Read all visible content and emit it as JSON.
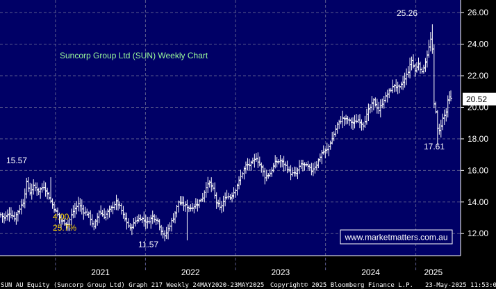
{
  "chart_data": {
    "type": "ohlc",
    "title": "Suncorp Group Ltd (SUN) Weekly Chart",
    "ylim": [
      10.6,
      26.8
    ],
    "y_ticks": [
      12,
      14,
      16,
      18,
      20,
      22,
      24,
      26
    ],
    "y_tick_labels": [
      "12.00",
      "14.00",
      "16.00",
      "18.00",
      "20.00",
      "22.00",
      "24.00",
      "26.00"
    ],
    "x_labels": [
      "2021",
      "2022",
      "2023",
      "2024",
      "2025"
    ],
    "grid": true,
    "last_price": "20.52",
    "watermark": "www.marketmatters.com.au",
    "annotations": [
      {
        "text": "25.26",
        "color": "#ffffff"
      },
      {
        "text": "15.57",
        "color": "#ffffff"
      },
      {
        "text": "4.00",
        "color": "#ffd700"
      },
      {
        "text": "25.7%",
        "color": "#ffd700"
      },
      {
        "text": "11.57",
        "color": "#ffffff"
      },
      {
        "text": "17.61",
        "color": "#ffffff"
      }
    ],
    "series": [
      {
        "anchors": [
          {
            "date": "2020-05-24",
            "close": 13.2
          },
          {
            "date": "2020-06-07",
            "close": 13.0
          },
          {
            "date": "2020-06-28",
            "close": 13.3
          },
          {
            "date": "2020-07-19",
            "close": 13.0
          },
          {
            "date": "2020-08-09",
            "close": 13.6
          },
          {
            "date": "2020-08-23",
            "close": 14.0
          },
          {
            "date": "2020-09-06",
            "close": 15.2
          },
          {
            "date": "2020-09-20",
            "close": 14.6
          },
          {
            "date": "2020-10-04",
            "close": 15.0
          },
          {
            "date": "2020-10-25",
            "close": 14.7
          },
          {
            "date": "2020-11-15",
            "close": 15.0
          },
          {
            "date": "2020-12-06",
            "close": 14.3
          },
          {
            "date": "2020-12-27",
            "close": 13.6
          },
          {
            "date": "2021-01-24",
            "close": 12.8
          },
          {
            "date": "2021-02-21",
            "close": 12.6
          },
          {
            "date": "2021-03-14",
            "close": 13.4
          },
          {
            "date": "2021-04-04",
            "close": 13.9
          },
          {
            "date": "2021-04-25",
            "close": 13.4
          },
          {
            "date": "2021-05-16",
            "close": 13.2
          },
          {
            "date": "2021-06-06",
            "close": 12.4
          },
          {
            "date": "2021-06-27",
            "close": 13.4
          },
          {
            "date": "2021-07-18",
            "close": 13.1
          },
          {
            "date": "2021-08-15",
            "close": 13.6
          },
          {
            "date": "2021-09-05",
            "close": 14.0
          },
          {
            "date": "2021-09-19",
            "close": 13.7
          },
          {
            "date": "2021-10-10",
            "close": 12.9
          },
          {
            "date": "2021-10-31",
            "close": 12.3
          },
          {
            "date": "2021-11-21",
            "close": 12.8
          },
          {
            "date": "2021-12-12",
            "close": 13.0
          },
          {
            "date": "2022-01-09",
            "close": 12.7
          },
          {
            "date": "2022-01-30",
            "close": 13.1
          },
          {
            "date": "2022-02-20",
            "close": 12.8
          },
          {
            "date": "2022-03-06",
            "close": 12.2
          },
          {
            "date": "2022-03-20",
            "close": 11.8
          },
          {
            "date": "2022-04-03",
            "close": 12.3
          },
          {
            "date": "2022-04-24",
            "close": 13.0
          },
          {
            "date": "2022-05-15",
            "close": 14.0
          },
          {
            "date": "2022-06-05",
            "close": 13.8
          },
          {
            "date": "2022-07-03",
            "close": 13.6
          },
          {
            "date": "2022-07-31",
            "close": 13.9
          },
          {
            "date": "2022-08-21",
            "close": 14.3
          },
          {
            "date": "2022-09-04",
            "close": 15.0
          },
          {
            "date": "2022-09-18",
            "close": 15.2
          },
          {
            "date": "2022-10-02",
            "close": 14.8
          },
          {
            "date": "2022-10-16",
            "close": 14.0
          },
          {
            "date": "2022-10-30",
            "close": 13.6
          },
          {
            "date": "2022-11-13",
            "close": 14.0
          },
          {
            "date": "2022-11-27",
            "close": 14.4
          },
          {
            "date": "2022-12-11",
            "close": 14.3
          },
          {
            "date": "2023-01-01",
            "close": 14.8
          },
          {
            "date": "2023-01-22",
            "close": 15.6
          },
          {
            "date": "2023-02-12",
            "close": 16.3
          },
          {
            "date": "2023-03-05",
            "close": 16.4
          },
          {
            "date": "2023-03-26",
            "close": 16.8
          },
          {
            "date": "2023-04-16",
            "close": 16.2
          },
          {
            "date": "2023-04-30",
            "close": 15.6
          },
          {
            "date": "2023-05-21",
            "close": 15.8
          },
          {
            "date": "2023-06-11",
            "close": 16.5
          },
          {
            "date": "2023-07-02",
            "close": 16.6
          },
          {
            "date": "2023-07-23",
            "close": 16.3
          },
          {
            "date": "2023-08-13",
            "close": 15.8
          },
          {
            "date": "2023-09-03",
            "close": 15.8
          },
          {
            "date": "2023-09-24",
            "close": 16.4
          },
          {
            "date": "2023-10-15",
            "close": 16.3
          },
          {
            "date": "2023-11-05",
            "close": 16.0
          },
          {
            "date": "2023-11-26",
            "close": 16.4
          },
          {
            "date": "2023-12-17",
            "close": 17.1
          },
          {
            "date": "2024-01-07",
            "close": 17.3
          },
          {
            "date": "2024-01-28",
            "close": 18.0
          },
          {
            "date": "2024-02-18",
            "close": 18.9
          },
          {
            "date": "2024-03-10",
            "close": 19.3
          },
          {
            "date": "2024-03-31",
            "close": 19.2
          },
          {
            "date": "2024-04-21",
            "close": 19.0
          },
          {
            "date": "2024-05-12",
            "close": 19.2
          },
          {
            "date": "2024-06-02",
            "close": 18.9
          },
          {
            "date": "2024-06-23",
            "close": 19.8
          },
          {
            "date": "2024-07-14",
            "close": 20.4
          },
          {
            "date": "2024-08-04",
            "close": 19.8
          },
          {
            "date": "2024-08-25",
            "close": 20.5
          },
          {
            "date": "2024-09-15",
            "close": 21.0
          },
          {
            "date": "2024-10-06",
            "close": 21.4
          },
          {
            "date": "2024-10-27",
            "close": 21.2
          },
          {
            "date": "2024-11-17",
            "close": 21.8
          },
          {
            "date": "2024-12-01",
            "close": 22.3
          },
          {
            "date": "2024-12-15",
            "close": 23.0
          },
          {
            "date": "2024-12-29",
            "close": 22.3
          },
          {
            "date": "2025-01-12",
            "close": 22.8
          },
          {
            "date": "2025-01-26",
            "close": 22.2
          },
          {
            "date": "2025-02-09",
            "close": 22.9
          },
          {
            "date": "2025-02-23",
            "close": 23.8
          },
          {
            "date": "2025-03-02",
            "close": 24.3
          },
          {
            "date": "2025-03-09",
            "close": 23.6
          },
          {
            "date": "2025-03-16",
            "close": 20.2
          },
          {
            "date": "2025-03-23",
            "close": 19.8
          },
          {
            "date": "2025-03-30",
            "close": 18.6
          },
          {
            "date": "2025-04-06",
            "close": 18.5
          },
          {
            "date": "2025-04-13",
            "close": 18.9
          },
          {
            "date": "2025-04-20",
            "close": 19.3
          },
          {
            "date": "2025-05-04",
            "close": 19.7
          },
          {
            "date": "2025-05-11",
            "close": 20.4
          },
          {
            "date": "2025-05-18",
            "close": 20.6
          },
          {
            "date": "2025-05-23",
            "close": 20.52
          }
        ],
        "extremes": [
          {
            "date": "2020-12-13",
            "value": 15.57
          },
          {
            "date": "2022-06-19",
            "value": 11.57
          },
          {
            "date": "2025-03-09",
            "value": 25.26
          },
          {
            "date": "2025-03-30",
            "value": 17.61
          }
        ]
      }
    ]
  },
  "footer": {
    "left": "SUN AU Equity (Suncorp Group Ltd) Graph 217  Weekly 24MAY2020-23MAY2025",
    "center": "Copyright© 2025 Bloomberg Finance L.P.",
    "right": "23-May-2025 11:53:08"
  }
}
